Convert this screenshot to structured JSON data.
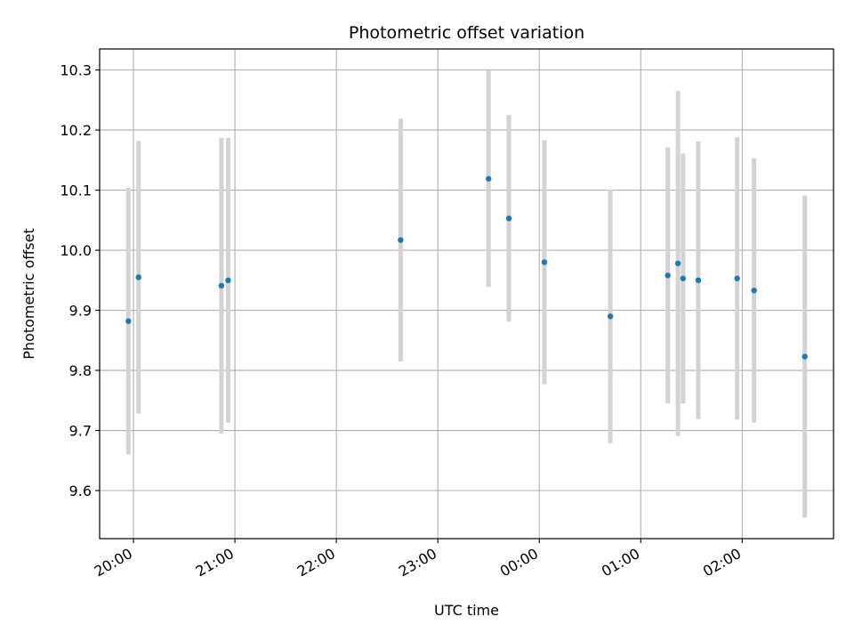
{
  "chart_data": {
    "type": "scatter",
    "title": "Photometric offset variation",
    "xlabel": "UTC time",
    "ylabel": "Photometric offset",
    "x_axis_type": "time",
    "xlim": [
      "19:40",
      "26:54"
    ],
    "ylim": [
      9.52,
      10.335
    ],
    "grid": true,
    "x_tick_labels": [
      "20:00",
      "21:00",
      "22:00",
      "23:00",
      "00:00",
      "01:00",
      "02:00"
    ],
    "x_tick_values": [
      "20:00",
      "21:00",
      "22:00",
      "23:00",
      "24:00",
      "25:00",
      "26:00"
    ],
    "y_ticks": [
      9.6,
      9.7,
      9.8,
      9.9,
      10.0,
      10.1,
      10.2,
      10.3
    ],
    "y_tick_labels": [
      "9.6",
      "9.7",
      "9.8",
      "9.9",
      "10.0",
      "10.1",
      "10.2",
      "10.3"
    ],
    "point_color": "#1f77b4",
    "errorbar_color": "#d3d3d3",
    "points": [
      {
        "x": "19:57",
        "y": 9.882,
        "err": 0.222
      },
      {
        "x": "20:03",
        "y": 9.955,
        "err": 0.227
      },
      {
        "x": "20:52",
        "y": 9.941,
        "err": 0.246
      },
      {
        "x": "20:56",
        "y": 9.95,
        "err": 0.237
      },
      {
        "x": "22:38",
        "y": 10.017,
        "err": 0.202
      },
      {
        "x": "23:30",
        "y": 10.119,
        "err": 0.18
      },
      {
        "x": "23:42",
        "y": 10.053,
        "err": 0.172
      },
      {
        "x": "00:03",
        "y": 9.98,
        "err": 0.203
      },
      {
        "x": "00:42",
        "y": 9.89,
        "err": 0.211
      },
      {
        "x": "01:16",
        "y": 9.958,
        "err": 0.213
      },
      {
        "x": "01:22",
        "y": 9.978,
        "err": 0.287
      },
      {
        "x": "01:25",
        "y": 9.953,
        "err": 0.208
      },
      {
        "x": "01:34",
        "y": 9.95,
        "err": 0.231
      },
      {
        "x": "01:57",
        "y": 9.953,
        "err": 0.235
      },
      {
        "x": "02:07",
        "y": 9.933,
        "err": 0.22
      },
      {
        "x": "02:37",
        "y": 9.823,
        "err": 0.268
      }
    ]
  }
}
